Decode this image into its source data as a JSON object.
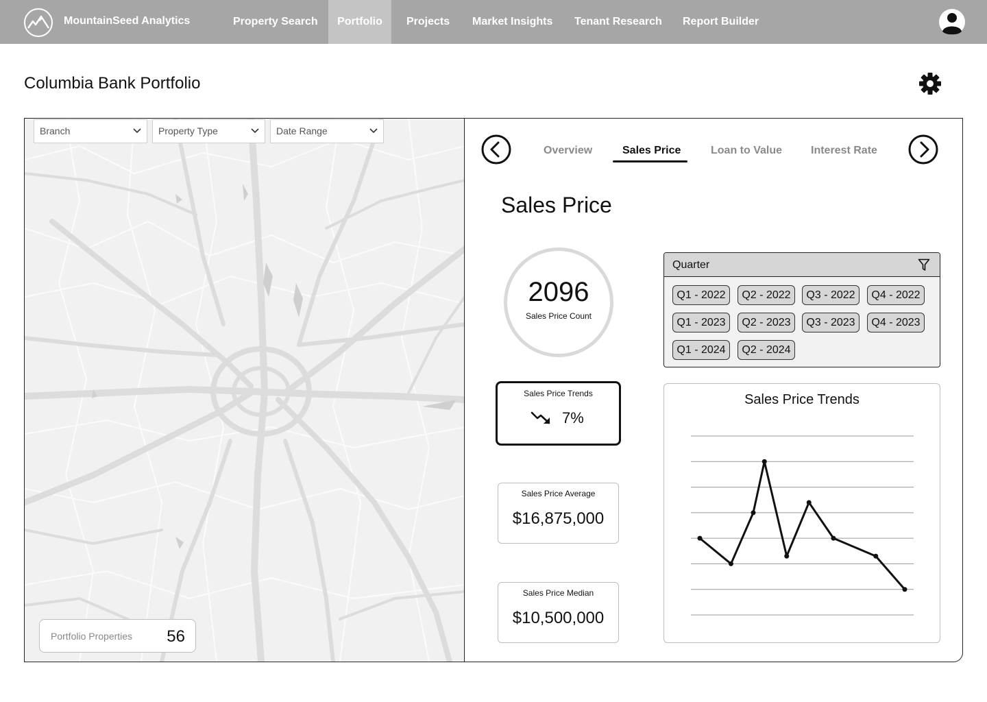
{
  "app": {
    "brand": "MountainSeed Analytics"
  },
  "nav": {
    "items": [
      {
        "label": "Property Search"
      },
      {
        "label": "Portfolio",
        "active": true
      },
      {
        "label": "Projects"
      },
      {
        "label": "Market Insights"
      },
      {
        "label": "Tenant Research"
      },
      {
        "label": "Report Builder"
      }
    ]
  },
  "page": {
    "title": "Columbia Bank Portfolio"
  },
  "filters": {
    "branch": "Branch",
    "property_type": "Property Type",
    "date_range": "Date Range"
  },
  "portfolio": {
    "label": "Portfolio Properties",
    "count": "56"
  },
  "tabs": [
    {
      "label": "Overview"
    },
    {
      "label": "Sales Price",
      "active": true
    },
    {
      "label": "Loan to Value"
    },
    {
      "label": "Interest Rate"
    }
  ],
  "section": {
    "title": "Sales Price"
  },
  "stats": {
    "count_value": "2096",
    "count_label": "Sales Price Count",
    "trend_label": "Sales Price Trends",
    "trend_value": "7%",
    "trend_direction": "down",
    "average_label": "Sales Price Average",
    "average_value": "$16,875,000",
    "median_label": "Sales Price Median",
    "median_value": "$10,500,000"
  },
  "quarter_filter": {
    "label": "Quarter",
    "options": [
      "Q1 - 2022",
      "Q2 - 2022",
      "Q3 - 2022",
      "Q4 - 2022",
      "Q1 - 2023",
      "Q2 - 2023",
      "Q3 - 2023",
      "Q4 - 2023",
      "Q1 - 2024",
      "Q2 - 2024"
    ]
  },
  "icons": {
    "logo": "mountain-logo-icon",
    "avatar": "user-avatar-icon",
    "settings": "gear-icon",
    "prev": "chevron-left-circle-icon",
    "next": "chevron-right-circle-icon",
    "filter": "funnel-icon",
    "dropdown": "chevron-down-icon",
    "trend": "trend-down-arrow-icon"
  },
  "colors": {
    "nav_bg": "#a6a6a6",
    "nav_active": "#c4c4c4",
    "chip_bg": "#d6d6d6",
    "map_bg": "#f1f1f1",
    "text": "#111111"
  },
  "chart_data": {
    "type": "line",
    "title": "Sales Price Trends",
    "xlabel": "",
    "ylabel": "",
    "grid": true,
    "ylim": [
      0,
      7
    ],
    "x": [
      0.4,
      1.8,
      2.8,
      3.3,
      4.3,
      5.3,
      6.4,
      8.3,
      9.6
    ],
    "series": [
      {
        "values": [
          3.0,
          2.0,
          4.0,
          6.0,
          2.3,
          4.4,
          3.0,
          2.3,
          1.0
        ]
      }
    ],
    "xlim": [
      0,
      10
    ]
  }
}
